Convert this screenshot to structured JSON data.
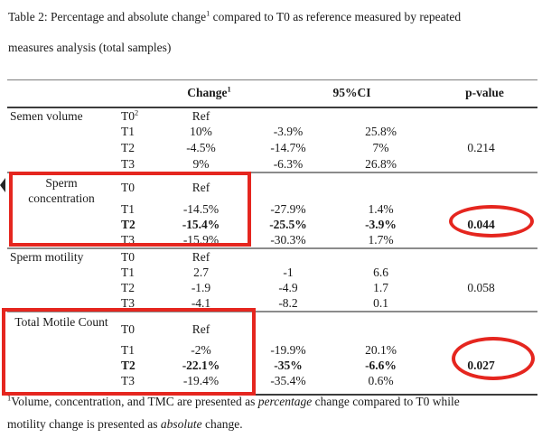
{
  "caption": {
    "line1_pre": "Table 2: Percentage and absolute change",
    "line1_sup": "1",
    "line1_post": " compared to T0 as reference measured by repeated",
    "line2": "measures analysis (total samples)"
  },
  "header": {
    "change_label": "Change",
    "change_sup": "1",
    "ci_label": "95%CI",
    "pvalue_label": "p-value"
  },
  "sections": [
    {
      "name": "Semen volume",
      "rows": [
        {
          "t": "T0",
          "t_sup": "2",
          "change": "Ref",
          "ci_low": "",
          "ci_high": "",
          "p": ""
        },
        {
          "t": "T1",
          "change": "10%",
          "ci_low": "-3.9%",
          "ci_high": "25.8%",
          "p": ""
        },
        {
          "t": "T2",
          "change": "-4.5%",
          "ci_low": "-14.7%",
          "ci_high": "7%",
          "p": "0.214"
        },
        {
          "t": "T3",
          "change": "9%",
          "ci_low": "-6.3%",
          "ci_high": "26.8%",
          "p": ""
        }
      ]
    },
    {
      "name": "Sperm concentration",
      "rows": [
        {
          "t": "T0",
          "change": "Ref",
          "ci_low": "",
          "ci_high": "",
          "p": ""
        },
        {
          "t": "T1",
          "change": "-14.5%",
          "ci_low": "-27.9%",
          "ci_high": "1.4%",
          "p": ""
        },
        {
          "t": "T2",
          "change": "-15.4%",
          "ci_low": "-25.5%",
          "ci_high": "-3.9%",
          "p": "0.044",
          "bold": true
        },
        {
          "t": "T3",
          "change": "-15.9%",
          "ci_low": "-30.3%",
          "ci_high": "1.7%",
          "p": ""
        }
      ]
    },
    {
      "name": "Sperm motility",
      "rows": [
        {
          "t": "T0",
          "change": "Ref",
          "ci_low": "",
          "ci_high": "",
          "p": ""
        },
        {
          "t": "T1",
          "change": "2.7",
          "ci_low": "-1",
          "ci_high": "6.6",
          "p": ""
        },
        {
          "t": "T2",
          "change": "-1.9",
          "ci_low": "-4.9",
          "ci_high": "1.7",
          "p": "0.058"
        },
        {
          "t": "T3",
          "change": "-4.1",
          "ci_low": "-8.2",
          "ci_high": "0.1",
          "p": ""
        }
      ]
    },
    {
      "name": "Total Motile Count",
      "rows": [
        {
          "t": "T0",
          "change": "Ref",
          "ci_low": "",
          "ci_high": "",
          "p": ""
        },
        {
          "t": "T1",
          "change": "-2%",
          "ci_low": "-19.9%",
          "ci_high": "20.1%",
          "p": ""
        },
        {
          "t": "T2",
          "change": "-22.1%",
          "ci_low": "-35%",
          "ci_high": "-6.6%",
          "p": "0.027",
          "bold": true
        },
        {
          "t": "T3",
          "change": "-19.4%",
          "ci_low": "-35.4%",
          "ci_high": "0.6%",
          "p": ""
        }
      ]
    }
  ],
  "footnote": {
    "sup": "1",
    "l1a": "Volume, concentration, and TMC are presented as ",
    "l1_italic": "percentage",
    "l1b": " change compared to T0 while",
    "l2a": "motility change is presented as ",
    "l2_italic": "absolute",
    "l2b": " change."
  },
  "annotations": {
    "color": "#e5261f",
    "marker_color": "#262626",
    "highlighted_sections": [
      "Sperm concentration",
      "Total Motile Count"
    ],
    "circled_pvalues": [
      "0.044",
      "0.027"
    ]
  }
}
